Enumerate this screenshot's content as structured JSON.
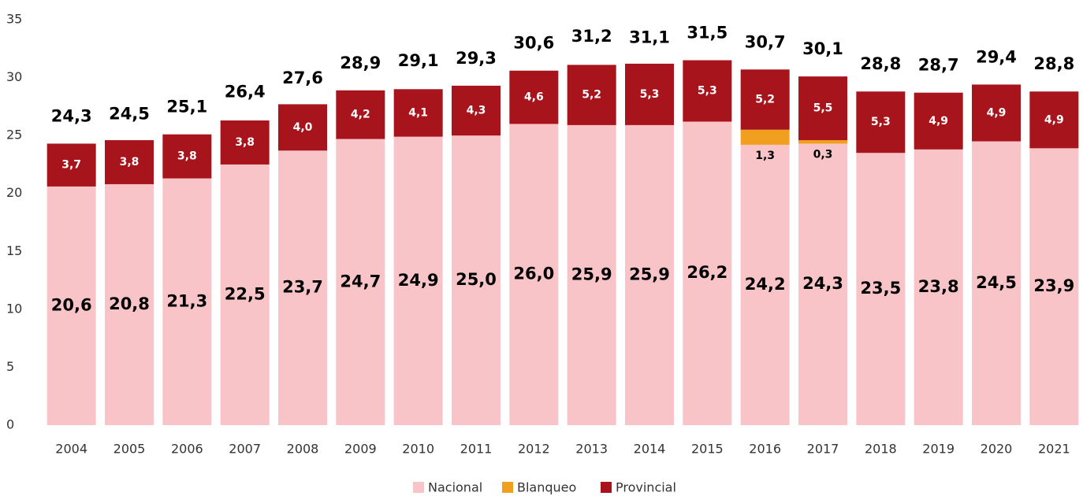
{
  "chart_data": {
    "type": "stacked_bar",
    "categories": [
      "2004",
      "2005",
      "2006",
      "2007",
      "2008",
      "2009",
      "2010",
      "2011",
      "2012",
      "2013",
      "2014",
      "2015",
      "2016",
      "2017",
      "2018",
      "2019",
      "2020",
      "2021"
    ],
    "series": [
      {
        "name": "Nacional",
        "color": "#f9c4c8",
        "values": [
          20.6,
          20.8,
          21.3,
          22.5,
          23.7,
          24.7,
          24.9,
          25.0,
          26.0,
          25.9,
          25.9,
          26.2,
          24.2,
          24.3,
          23.5,
          23.8,
          24.5,
          23.9
        ],
        "value_labels": [
          "20,6",
          "20,8",
          "21,3",
          "22,5",
          "23,7",
          "24,7",
          "24,9",
          "25,0",
          "26,0",
          "25,9",
          "25,9",
          "26,2",
          "24,2",
          "24,3",
          "23,5",
          "23,8",
          "24,5",
          "23,9"
        ]
      },
      {
        "name": "Blanqueo",
        "color": "#f0a01e",
        "values": [
          null,
          null,
          null,
          null,
          null,
          null,
          null,
          null,
          null,
          null,
          null,
          null,
          1.3,
          0.3,
          null,
          null,
          null,
          null
        ],
        "value_labels": [
          null,
          null,
          null,
          null,
          null,
          null,
          null,
          null,
          null,
          null,
          null,
          null,
          "1,3",
          "0,3",
          null,
          null,
          null,
          null
        ]
      },
      {
        "name": "Provincial",
        "color": "#a8141c",
        "values": [
          3.7,
          3.8,
          3.8,
          3.8,
          4.0,
          4.2,
          4.1,
          4.3,
          4.6,
          5.2,
          5.3,
          5.3,
          5.2,
          5.5,
          5.3,
          4.9,
          4.9,
          4.9
        ],
        "value_labels": [
          "3,7",
          "3,8",
          "3,8",
          "3,8",
          "4,0",
          "4,2",
          "4,1",
          "4,3",
          "4,6",
          "5,2",
          "5,3",
          "5,3",
          "5,2",
          "5,5",
          "5,3",
          "4,9",
          "4,9",
          "4,9"
        ]
      }
    ],
    "totals": [
      24.3,
      24.5,
      25.1,
      26.4,
      27.6,
      28.9,
      29.1,
      29.3,
      30.6,
      31.2,
      31.1,
      31.5,
      30.7,
      30.1,
      28.8,
      28.7,
      29.4,
      28.8
    ],
    "total_labels": [
      "24,3",
      "24,5",
      "25,1",
      "26,4",
      "27,6",
      "28,9",
      "29,1",
      "29,3",
      "30,6",
      "31,2",
      "31,1",
      "31,5",
      "30,7",
      "30,1",
      "28,8",
      "28,7",
      "29,4",
      "28,8"
    ],
    "ylim": [
      0,
      35
    ],
    "yticks": [
      0,
      5,
      10,
      15,
      20,
      25,
      30,
      35
    ],
    "grid": false,
    "legend": "bottom"
  }
}
